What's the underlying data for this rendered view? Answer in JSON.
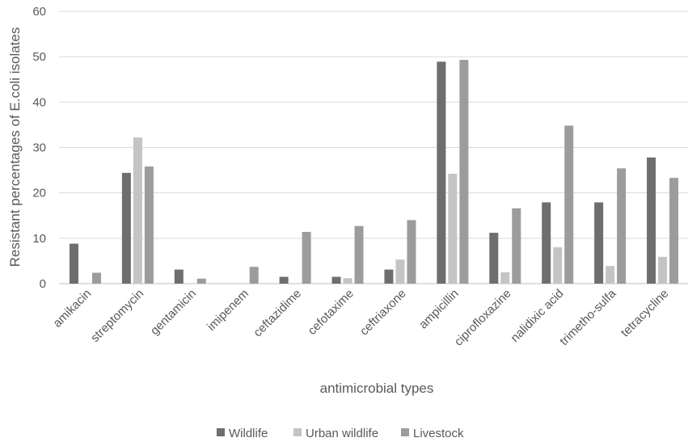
{
  "chart_data": {
    "type": "bar",
    "title": "",
    "xlabel": "antimicrobial types",
    "ylabel": "Resistant percentages of E.coli isolates",
    "ylim": [
      0,
      60
    ],
    "yticks": [
      0,
      10,
      20,
      30,
      40,
      50,
      60
    ],
    "grid": true,
    "legend_position": "bottom",
    "categories": [
      "amikacin",
      "streptomycin",
      "gentamicin",
      "imipenem",
      "ceftazidime",
      "cefotaxime",
      "ceftriaxone",
      "ampicillin",
      "ciprofloxazine",
      "nalidixic acid",
      "trimetho-sulfa",
      "tetracycline"
    ],
    "series": [
      {
        "name": "Wildlife",
        "color": "#6e6e6e",
        "values": [
          8.8,
          24.4,
          3.1,
          0,
          1.5,
          1.5,
          3.1,
          48.9,
          11.2,
          17.9,
          17.9,
          27.8
        ]
      },
      {
        "name": "Urban wildlife",
        "color": "#c4c4c4",
        "values": [
          0,
          32.2,
          0,
          0,
          0,
          1.2,
          5.3,
          24.2,
          2.5,
          8.0,
          3.9,
          5.9
        ]
      },
      {
        "name": "Livestock",
        "color": "#9c9c9c",
        "values": [
          2.4,
          25.8,
          1.1,
          3.7,
          11.4,
          12.7,
          14.0,
          49.3,
          16.6,
          34.8,
          25.4,
          23.3
        ]
      }
    ]
  }
}
